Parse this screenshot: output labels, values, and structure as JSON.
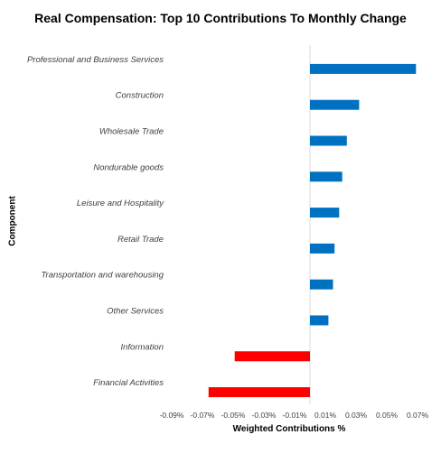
{
  "chart_data": {
    "type": "bar",
    "orientation": "horizontal",
    "title": "Real Compensation: Top 10 Contributions To Monthly Change",
    "xlabel": "Weighted Contributions %",
    "ylabel": "Component",
    "categories": [
      "Professional and Business Services",
      "Construction",
      "Wholesale Trade",
      "Nondurable goods",
      "Leisure and Hospitality",
      "Retail Trade",
      "Transportation and warehousing",
      "Other Services",
      "Information",
      "Financial Activities"
    ],
    "values": [
      0.069,
      0.032,
      0.024,
      0.021,
      0.019,
      0.016,
      0.015,
      0.012,
      -0.049,
      -0.066
    ],
    "colors": {
      "positive": "#0070C0",
      "negative": "#FF0000"
    },
    "xlim": [
      -0.09,
      0.07
    ],
    "xticks": [
      "-0.09%",
      "-0.07%",
      "-0.05%",
      "-0.03%",
      "-0.01%",
      "0.01%",
      "0.03%",
      "0.05%",
      "0.07%"
    ],
    "xtick_values": [
      -0.09,
      -0.07,
      -0.05,
      -0.03,
      -0.01,
      0.01,
      0.03,
      0.05,
      0.07
    ],
    "grid": false,
    "legend": "none"
  }
}
